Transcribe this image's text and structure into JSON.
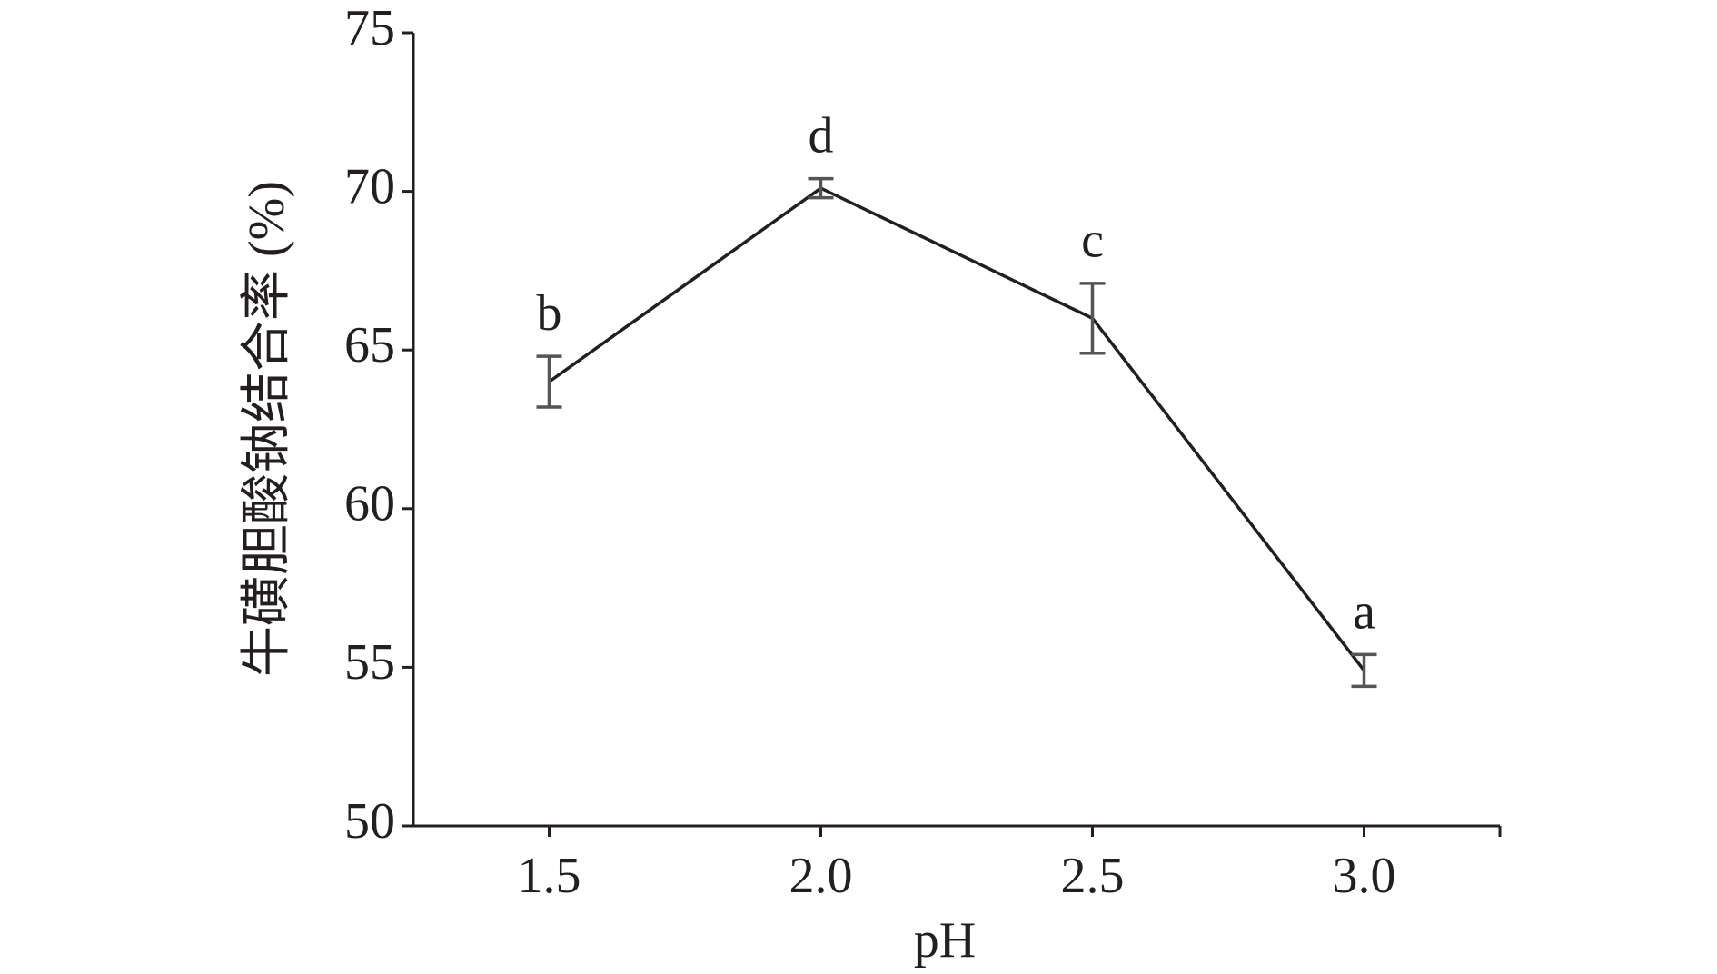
{
  "chart_data": {
    "type": "line",
    "x_label": "pH",
    "y_label": "牛磺胆酸钠结合率 (%)",
    "x": [
      1.5,
      2.0,
      2.5,
      3.0
    ],
    "series": [
      {
        "color": "#231f20",
        "error_color": "#555555",
        "values": [
          64.0,
          70.1,
          66.0,
          54.9
        ],
        "errors": [
          0.8,
          0.3,
          1.1,
          0.5
        ],
        "letters": [
          "b",
          "d",
          "c",
          "a"
        ]
      }
    ],
    "xlim": [
      1.25,
      3.25
    ],
    "xticks": [
      1.5,
      {
        "value": 2,
        "label": "2.0"
      },
      2.5,
      {
        "value": 3,
        "label": "3.0"
      }
    ],
    "ylim": [
      50,
      75
    ],
    "yticks": [
      50,
      55,
      60,
      65,
      70,
      75
    ],
    "grid": false
  }
}
